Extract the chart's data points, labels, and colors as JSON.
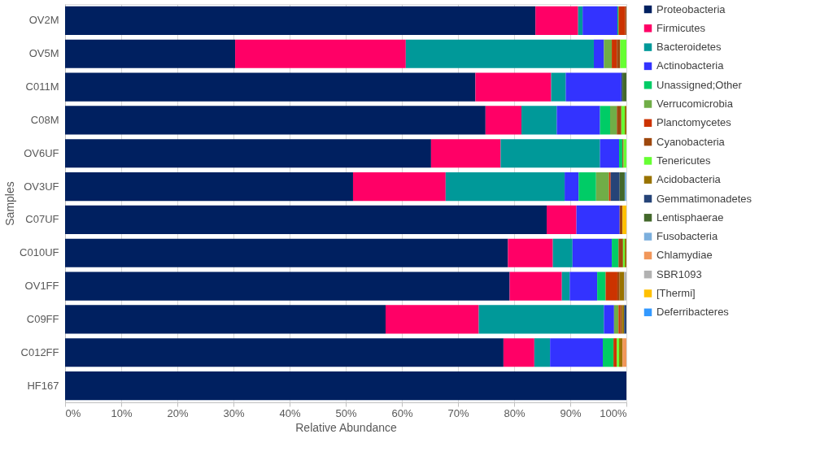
{
  "chart_data": {
    "type": "bar",
    "orientation": "horizontal",
    "stacked": true,
    "xlabel": "Relative Abundance",
    "ylabel": "Samples",
    "categories": [
      "OV2M",
      "OV5M",
      "C011M",
      "C08M",
      "OV6UF",
      "OV3UF",
      "C07UF",
      "C010UF",
      "OV1FF",
      "C09FF",
      "C012FF",
      "HF167"
    ],
    "xlim": [
      0,
      100
    ],
    "xticks": [
      {
        "value": 0,
        "label": "0%"
      },
      {
        "value": 10,
        "label": "10%"
      },
      {
        "value": 20,
        "label": "20%"
      },
      {
        "value": 30,
        "label": "30%"
      },
      {
        "value": 40,
        "label": "40%"
      },
      {
        "value": 50,
        "label": "50%"
      },
      {
        "value": 60,
        "label": "60%"
      },
      {
        "value": 70,
        "label": "70%"
      },
      {
        "value": 80,
        "label": "80%"
      },
      {
        "value": 90,
        "label": "90%"
      },
      {
        "value": 100,
        "label": "100%"
      }
    ],
    "grid": "x",
    "legend": "right",
    "series": [
      {
        "name": "Proteobacteria",
        "color": "#002060",
        "values": [
          83.8,
          30.3,
          73.1,
          74.9,
          65.2,
          51.3,
          85.8,
          78.9,
          79.2,
          57.1,
          78.1,
          100
        ]
      },
      {
        "name": "Firmicutes",
        "color": "#ff0066",
        "values": [
          7.6,
          30.4,
          13.5,
          6.4,
          12.4,
          16.5,
          5.3,
          8.0,
          9.3,
          16.6,
          5.5,
          0
        ]
      },
      {
        "name": "Bacteroidetes",
        "color": "#009999",
        "values": [
          0.8,
          33.5,
          2.6,
          6.3,
          17.7,
          21.2,
          0,
          3.5,
          1.4,
          22.3,
          2.8,
          0
        ]
      },
      {
        "name": "Actinobacteria",
        "color": "#3333ff",
        "values": [
          6.2,
          1.8,
          9.9,
          7.7,
          3.4,
          2.5,
          7.7,
          7.0,
          4.9,
          1.8,
          9.4,
          0
        ]
      },
      {
        "name": "Unassigned;Other",
        "color": "#00cc66",
        "values": [
          0.2,
          0,
          0,
          1.8,
          0.6,
          3.1,
          0,
          1.2,
          1.5,
          0,
          1.9,
          0
        ]
      },
      {
        "name": "Verrucomicrobia",
        "color": "#70ad47",
        "values": [
          0,
          1.4,
          0,
          1.2,
          0,
          2.3,
          0,
          0,
          0,
          0.8,
          0,
          0
        ]
      },
      {
        "name": "Planctomycetes",
        "color": "#cc3300",
        "values": [
          1.2,
          0.9,
          0,
          0,
          0,
          0.3,
          0,
          0,
          2.1,
          0.3,
          0.6,
          0
        ]
      },
      {
        "name": "Cyanobacteria",
        "color": "#9e480e",
        "values": [
          0.2,
          0.6,
          0,
          0.8,
          0.2,
          0,
          0.5,
          0.8,
          0.4,
          0.3,
          0,
          0
        ]
      },
      {
        "name": "Tenericutes",
        "color": "#66ff33",
        "values": [
          0,
          1.1,
          0,
          0.6,
          0.5,
          0,
          0,
          0.3,
          0,
          0,
          0.4,
          0
        ]
      },
      {
        "name": "Acidobacteria",
        "color": "#997300",
        "values": [
          0,
          0,
          0,
          0.3,
          0,
          0,
          0,
          0.3,
          0.8,
          0.4,
          0.6,
          0
        ]
      },
      {
        "name": "Gemmatimonadetes",
        "color": "#264478",
        "values": [
          0,
          0,
          0.2,
          0,
          0,
          1.6,
          0,
          0,
          0,
          0.4,
          0,
          0
        ]
      },
      {
        "name": "Lentisphaerae",
        "color": "#43682b",
        "values": [
          0,
          0,
          0.7,
          0,
          0,
          0.9,
          0,
          0,
          0,
          0,
          0,
          0
        ]
      },
      {
        "name": "Fusobacteria",
        "color": "#7cafdd",
        "values": [
          0,
          0,
          0,
          0,
          0,
          0.3,
          0,
          0,
          0,
          0,
          0,
          0
        ]
      },
      {
        "name": "Chlamydiae",
        "color": "#f1975a",
        "values": [
          0,
          0,
          0,
          0,
          0,
          0,
          0,
          0,
          0,
          0,
          0.7,
          0
        ]
      },
      {
        "name": "SBR1093",
        "color": "#b2b2b2",
        "values": [
          0,
          0,
          0,
          0,
          0,
          0,
          null,
          0,
          0.4,
          0,
          0,
          0
        ]
      },
      {
        "name": "[Thermi]",
        "color": "#ffc000",
        "values": [
          0,
          0,
          0,
          0,
          0,
          0,
          0.7,
          0,
          0,
          0,
          0,
          0
        ]
      },
      {
        "name": "Deferribacteres",
        "color": "#3399ff",
        "values": [
          0,
          0,
          0,
          0,
          0,
          0,
          0,
          0,
          0,
          0,
          0,
          0
        ]
      }
    ]
  }
}
